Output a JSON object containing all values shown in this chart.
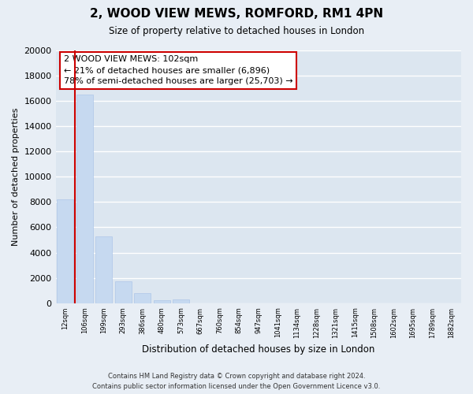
{
  "title": "2, WOOD VIEW MEWS, ROMFORD, RM1 4PN",
  "subtitle": "Size of property relative to detached houses in London",
  "xlabel": "Distribution of detached houses by size in London",
  "ylabel": "Number of detached properties",
  "bar_labels": [
    "12sqm",
    "106sqm",
    "199sqm",
    "293sqm",
    "386sqm",
    "480sqm",
    "573sqm",
    "667sqm",
    "760sqm",
    "854sqm",
    "947sqm",
    "1041sqm",
    "1134sqm",
    "1228sqm",
    "1321sqm",
    "1415sqm",
    "1508sqm",
    "1602sqm",
    "1695sqm",
    "1789sqm",
    "1882sqm"
  ],
  "bar_values": [
    8200,
    16500,
    5300,
    1750,
    800,
    250,
    280,
    0,
    0,
    0,
    0,
    0,
    0,
    0,
    0,
    0,
    0,
    0,
    0,
    0,
    0
  ],
  "bar_color": "#c6d9f0",
  "bar_edge_color": "#aec6e8",
  "property_line_x": 0.5,
  "annotation_title": "2 WOOD VIEW MEWS: 102sqm",
  "annotation_line1": "← 21% of detached houses are smaller (6,896)",
  "annotation_line2": "78% of semi-detached houses are larger (25,703) →",
  "ylim": [
    0,
    20000
  ],
  "yticks": [
    0,
    2000,
    4000,
    6000,
    8000,
    10000,
    12000,
    14000,
    16000,
    18000,
    20000
  ],
  "footer_line1": "Contains HM Land Registry data © Crown copyright and database right 2024.",
  "footer_line2": "Contains public sector information licensed under the Open Government Licence v3.0.",
  "bg_color": "#e8eef5",
  "plot_bg_color": "#dce6f0",
  "grid_color": "#ffffff",
  "annotation_box_color": "#ffffff",
  "annotation_box_edge": "#cc0000",
  "property_line_color": "#cc0000"
}
